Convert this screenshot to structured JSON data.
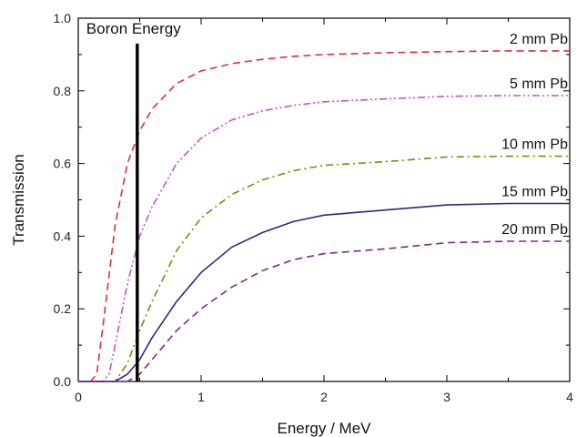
{
  "chart_data": {
    "type": "line",
    "title": "",
    "xlabel": "Energy / MeV",
    "ylabel": "Transmission",
    "xlim": [
      0,
      4
    ],
    "ylim": [
      0,
      1.0
    ],
    "x_ticks": [
      0,
      1,
      2,
      3,
      4
    ],
    "y_ticks": [
      0.0,
      0.2,
      0.4,
      0.6,
      0.8,
      1.0
    ],
    "x_tick_labels": [
      "0",
      "1",
      "2",
      "3",
      "4"
    ],
    "y_tick_labels": [
      "0.0",
      "0.2",
      "0.4",
      "0.6",
      "0.8",
      "1.0"
    ],
    "grid": false,
    "series": [
      {
        "name": "2 mm Pb",
        "color": "#e03030",
        "style": "dash",
        "x": [
          0.0,
          0.1,
          0.15,
          0.2,
          0.3,
          0.4,
          0.5,
          0.6,
          0.8,
          1.0,
          1.25,
          1.5,
          1.75,
          2.0,
          2.5,
          3.0,
          3.5,
          4.0
        ],
        "y": [
          0.0,
          0.0,
          0.02,
          0.15,
          0.43,
          0.6,
          0.69,
          0.75,
          0.82,
          0.855,
          0.875,
          0.887,
          0.895,
          0.9,
          0.905,
          0.908,
          0.91,
          0.91
        ]
      },
      {
        "name": "5 mm Pb",
        "color": "#c850c8",
        "style": "dashdotdot",
        "x": [
          0.0,
          0.2,
          0.25,
          0.3,
          0.4,
          0.5,
          0.6,
          0.8,
          1.0,
          1.25,
          1.5,
          1.75,
          2.0,
          2.5,
          3.0,
          3.5,
          4.0
        ],
        "y": [
          0.0,
          0.0,
          0.02,
          0.1,
          0.27,
          0.4,
          0.48,
          0.6,
          0.67,
          0.72,
          0.745,
          0.76,
          0.77,
          0.778,
          0.785,
          0.787,
          0.787
        ]
      },
      {
        "name": "10 mm Pb",
        "color": "#858510",
        "style": "dashdot",
        "x": [
          0.0,
          0.3,
          0.4,
          0.5,
          0.6,
          0.8,
          1.0,
          1.25,
          1.5,
          1.75,
          2.0,
          2.5,
          3.0,
          3.5,
          4.0
        ],
        "y": [
          0.0,
          0.0,
          0.05,
          0.14,
          0.22,
          0.36,
          0.45,
          0.515,
          0.555,
          0.58,
          0.595,
          0.605,
          0.618,
          0.62,
          0.62
        ]
      },
      {
        "name": "15 mm Pb",
        "color": "#2a2a80",
        "style": "solid",
        "x": [
          0.0,
          0.3,
          0.4,
          0.5,
          0.6,
          0.8,
          1.0,
          1.25,
          1.5,
          1.75,
          2.0,
          2.5,
          3.0,
          3.5,
          4.0
        ],
        "y": [
          0.0,
          0.0,
          0.02,
          0.06,
          0.12,
          0.22,
          0.3,
          0.37,
          0.41,
          0.44,
          0.458,
          0.472,
          0.486,
          0.49,
          0.49
        ]
      },
      {
        "name": "20 mm Pb",
        "color": "#7a2a8a",
        "style": "dash",
        "x": [
          0.0,
          0.3,
          0.4,
          0.5,
          0.6,
          0.8,
          1.0,
          1.25,
          1.5,
          1.75,
          2.0,
          2.5,
          3.0,
          3.5,
          4.0
        ],
        "y": [
          0.0,
          0.0,
          0.0,
          0.02,
          0.06,
          0.14,
          0.2,
          0.26,
          0.305,
          0.335,
          0.352,
          0.365,
          0.382,
          0.386,
          0.386
        ]
      }
    ],
    "annotation": {
      "text": "Boron Energy",
      "x": 0.48,
      "y_top": 0.93
    }
  }
}
